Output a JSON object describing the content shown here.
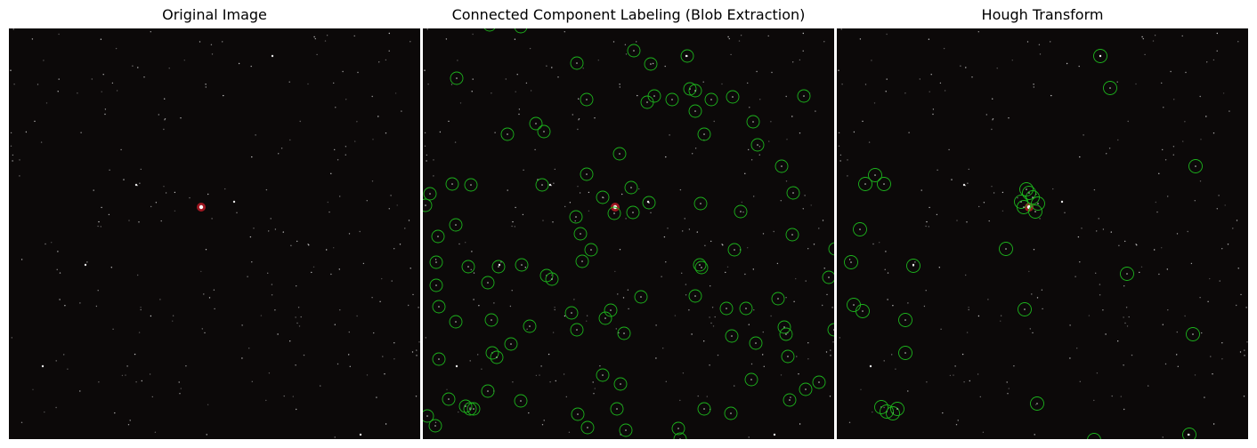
{
  "figure": {
    "panels": [
      {
        "title": "Original Image"
      },
      {
        "title": "Connected Component Labeling (Blob Extraction)"
      },
      {
        "title": "Hough Transform"
      }
    ]
  },
  "colors": {
    "background": "#0c0909",
    "star": "#ffffff",
    "bright_star": "#ff2030",
    "detection_circle": "#1db31d"
  }
}
